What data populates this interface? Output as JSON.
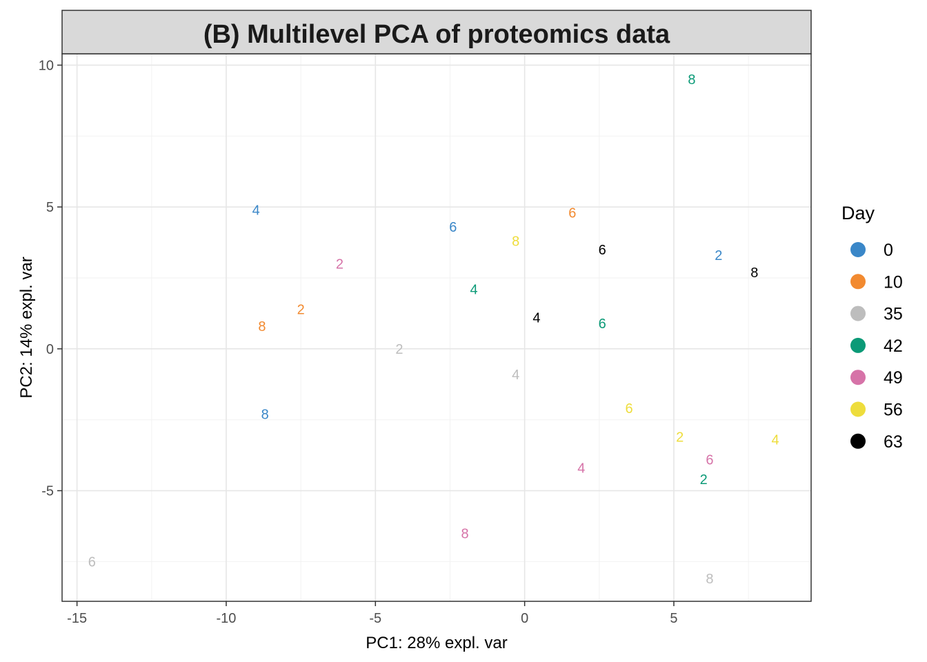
{
  "chart_data": {
    "type": "scatter",
    "title": "(B) Multilevel PCA of proteomics data",
    "xlabel": "PC1: 28% expl. var",
    "ylabel": "PC2: 14% expl. var",
    "xlim": [
      -15.5,
      9.6
    ],
    "ylim": [
      -8.9,
      10.4
    ],
    "x_ticks": [
      -15,
      -10,
      -5,
      0,
      5
    ],
    "y_ticks": [
      -5,
      0,
      5,
      10
    ],
    "grid": true,
    "legend": {
      "title": "Day",
      "position": "right",
      "entries": [
        {
          "label": "0",
          "color": "#3A87C8"
        },
        {
          "label": "10",
          "color": "#F28A30"
        },
        {
          "label": "35",
          "color": "#BDBDBD"
        },
        {
          "label": "42",
          "color": "#0B9A77"
        },
        {
          "label": "49",
          "color": "#D673A8"
        },
        {
          "label": "56",
          "color": "#EEDD3C"
        },
        {
          "label": "63",
          "color": "#000000"
        }
      ]
    },
    "series": [
      {
        "day": "0",
        "color": "#3A87C8",
        "points": [
          {
            "x": -9.0,
            "y": 4.9,
            "label": "4"
          },
          {
            "x": -2.4,
            "y": 4.3,
            "label": "6"
          },
          {
            "x": 6.5,
            "y": 3.3,
            "label": "2"
          },
          {
            "x": -8.7,
            "y": -2.3,
            "label": "8"
          }
        ]
      },
      {
        "day": "10",
        "color": "#F28A30",
        "points": [
          {
            "x": 1.6,
            "y": 4.8,
            "label": "6"
          },
          {
            "x": -7.5,
            "y": 1.4,
            "label": "2"
          },
          {
            "x": -8.8,
            "y": 0.8,
            "label": "8"
          }
        ]
      },
      {
        "day": "35",
        "color": "#BDBDBD",
        "points": [
          {
            "x": -4.2,
            "y": 0.0,
            "label": "2"
          },
          {
            "x": -0.3,
            "y": -0.9,
            "label": "4"
          },
          {
            "x": -14.5,
            "y": -7.5,
            "label": "6"
          },
          {
            "x": 6.2,
            "y": -8.1,
            "label": "8"
          }
        ]
      },
      {
        "day": "42",
        "color": "#0B9A77",
        "points": [
          {
            "x": 5.6,
            "y": 9.5,
            "label": "8"
          },
          {
            "x": -1.7,
            "y": 2.1,
            "label": "4"
          },
          {
            "x": 2.6,
            "y": 0.9,
            "label": "6"
          },
          {
            "x": 6.0,
            "y": -4.6,
            "label": "2"
          }
        ]
      },
      {
        "day": "49",
        "color": "#D673A8",
        "points": [
          {
            "x": -6.2,
            "y": 3.0,
            "label": "2"
          },
          {
            "x": 6.2,
            "y": -3.9,
            "label": "6"
          },
          {
            "x": 1.9,
            "y": -4.2,
            "label": "4"
          },
          {
            "x": -2.0,
            "y": -6.5,
            "label": "8"
          }
        ]
      },
      {
        "day": "56",
        "color": "#EEDD3C",
        "points": [
          {
            "x": -0.3,
            "y": 3.8,
            "label": "8"
          },
          {
            "x": 3.5,
            "y": -2.1,
            "label": "6"
          },
          {
            "x": 5.2,
            "y": -3.1,
            "label": "2"
          },
          {
            "x": 8.4,
            "y": -3.2,
            "label": "4"
          }
        ]
      },
      {
        "day": "63",
        "color": "#000000",
        "points": [
          {
            "x": 2.6,
            "y": 3.5,
            "label": "6"
          },
          {
            "x": 7.7,
            "y": 2.7,
            "label": "8"
          },
          {
            "x": 0.4,
            "y": 1.1,
            "label": "4"
          }
        ]
      }
    ]
  }
}
